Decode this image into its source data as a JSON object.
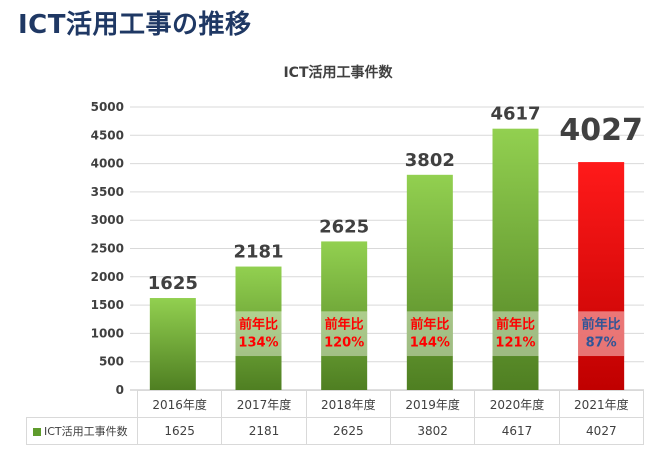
{
  "page": {
    "title": "ICT活用工事の推移"
  },
  "colors": {
    "title": "#1f3864",
    "bar_top": "#92d050",
    "bar_bottom": "#4f7f22",
    "bar_highlight_top": "#ff1a1a",
    "bar_highlight_bottom": "#c00000",
    "ratio_red": "#ff0000",
    "ratio_blue": "#2f5597"
  },
  "chart_data": {
    "type": "bar",
    "title": "ICT活用工事件数",
    "categories": [
      "2016年度",
      "2017年度",
      "2018年度",
      "2019年度",
      "2020年度",
      "2021年度"
    ],
    "series": [
      {
        "name": "ICT活用工事件数",
        "values": [
          1625,
          2181,
          2625,
          3802,
          4617,
          4027
        ]
      }
    ],
    "data_labels": [
      "1625",
      "2181",
      "2625",
      "3802",
      "4617",
      "4027"
    ],
    "yoy_label": "前年比",
    "yoy": [
      null,
      "134%",
      "120%",
      "144%",
      "121%",
      "87%"
    ],
    "yticks": [
      "0",
      "500",
      "1000",
      "1500",
      "2000",
      "2500",
      "3000",
      "3500",
      "4000",
      "4500",
      "5000"
    ],
    "ylim": [
      0,
      5000
    ],
    "xlabel": "",
    "ylabel": "",
    "grid": true,
    "legend": "table"
  }
}
